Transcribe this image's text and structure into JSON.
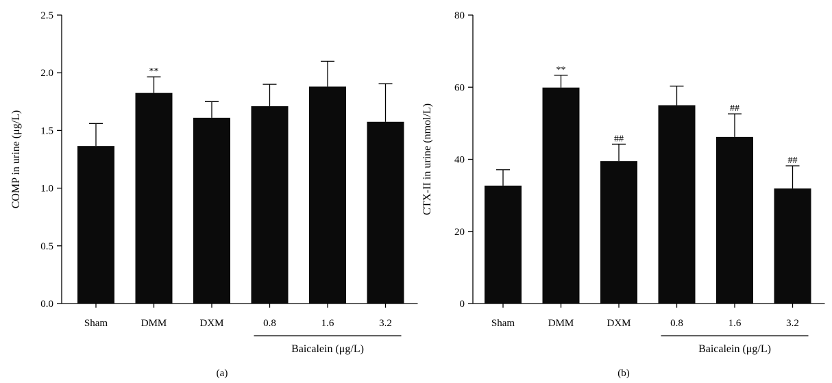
{
  "chart_data": [
    {
      "type": "bar",
      "panel_label": "(a)",
      "categories": [
        "Sham",
        "DMM",
        "DXM",
        "0.8",
        "1.6",
        "3.2"
      ],
      "values": [
        1.365,
        1.825,
        1.61,
        1.71,
        1.88,
        1.575
      ],
      "errors": [
        0.195,
        0.14,
        0.14,
        0.19,
        0.22,
        0.33
      ],
      "annotations": [
        "",
        "**",
        "",
        "",
        "",
        ""
      ],
      "ylabel": "COMP in urine (μg/L)",
      "ylim": [
        0,
        2.5
      ],
      "yticks": [
        "0.0",
        "0.5",
        "1.0",
        "1.5",
        "2.0",
        "2.5"
      ],
      "ytick_values": [
        0,
        0.5,
        1.0,
        1.5,
        2.0,
        2.5
      ],
      "group_label": "Baicalein (μg/L)",
      "group_start": 3,
      "group_end": 5
    },
    {
      "type": "bar",
      "panel_label": "(b)",
      "categories": [
        "Sham",
        "DMM",
        "DXM",
        "0.8",
        "1.6",
        "3.2"
      ],
      "values": [
        32.7,
        59.9,
        39.5,
        55.0,
        46.2,
        31.9
      ],
      "errors": [
        4.4,
        3.4,
        4.7,
        5.3,
        6.4,
        6.3
      ],
      "annotations": [
        "",
        "**",
        "##",
        "",
        "##",
        "##"
      ],
      "ylabel": "CTX-II in urine (nmol/L)",
      "ylim": [
        0,
        80
      ],
      "yticks": [
        "0",
        "20",
        "40",
        "60",
        "80"
      ],
      "ytick_values": [
        0,
        20,
        40,
        60,
        80
      ],
      "group_label": "Baicalein (μg/L)",
      "group_start": 3,
      "group_end": 5
    }
  ]
}
